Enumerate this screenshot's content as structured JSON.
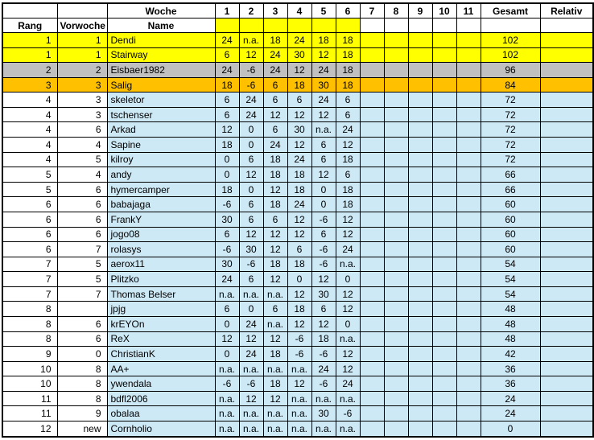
{
  "header": {
    "woche_label": "Woche",
    "rang_label": "Rang",
    "vorwoche_label": "Vorwoche",
    "name_label": "Name",
    "gesamt_label": "Gesamt",
    "relativ_label": "Relativ",
    "week_numbers": [
      "1",
      "2",
      "3",
      "4",
      "5",
      "6",
      "7",
      "8",
      "9",
      "10",
      "11"
    ],
    "completed_weeks": 6
  },
  "colors": {
    "rank1_highlight": "#FFFF00",
    "rank2_highlight": "#C0C0C0",
    "rank3_highlight": "#FFC000",
    "row_highlight": "#CDE9F6",
    "grid": "#000000"
  },
  "rows": [
    {
      "rang": "1",
      "vorwoche": "1",
      "name": "Dendi",
      "weeks": [
        "24",
        "n.a.",
        "18",
        "24",
        "18",
        "18"
      ],
      "gesamt": "102",
      "highlight": "gold"
    },
    {
      "rang": "1",
      "vorwoche": "1",
      "name": "Stairway",
      "weeks": [
        "6",
        "12",
        "24",
        "30",
        "12",
        "18"
      ],
      "gesamt": "102",
      "highlight": "gold"
    },
    {
      "rang": "2",
      "vorwoche": "2",
      "name": "Eisbaer1982",
      "weeks": [
        "24",
        "-6",
        "24",
        "12",
        "24",
        "18"
      ],
      "gesamt": "96",
      "highlight": "silver"
    },
    {
      "rang": "3",
      "vorwoche": "3",
      "name": "Salig",
      "weeks": [
        "18",
        "-6",
        "6",
        "18",
        "30",
        "18"
      ],
      "gesamt": "84",
      "highlight": "bronze"
    },
    {
      "rang": "4",
      "vorwoche": "3",
      "name": "skeletor",
      "weeks": [
        "6",
        "24",
        "6",
        "6",
        "24",
        "6"
      ],
      "gesamt": "72",
      "highlight": "blue"
    },
    {
      "rang": "4",
      "vorwoche": "3",
      "name": "tschenser",
      "weeks": [
        "6",
        "24",
        "12",
        "12",
        "12",
        "6"
      ],
      "gesamt": "72",
      "highlight": "blue"
    },
    {
      "rang": "4",
      "vorwoche": "6",
      "name": "Arkad",
      "weeks": [
        "12",
        "0",
        "6",
        "30",
        "n.a.",
        "24"
      ],
      "gesamt": "72",
      "highlight": "blue"
    },
    {
      "rang": "4",
      "vorwoche": "4",
      "name": "Sapine",
      "weeks": [
        "18",
        "0",
        "24",
        "12",
        "6",
        "12"
      ],
      "gesamt": "72",
      "highlight": "blue"
    },
    {
      "rang": "4",
      "vorwoche": "5",
      "name": "kilroy",
      "weeks": [
        "0",
        "6",
        "18",
        "24",
        "6",
        "18"
      ],
      "gesamt": "72",
      "highlight": "blue"
    },
    {
      "rang": "5",
      "vorwoche": "4",
      "name": "andy",
      "weeks": [
        "0",
        "12",
        "18",
        "18",
        "12",
        "6"
      ],
      "gesamt": "66",
      "highlight": "blue"
    },
    {
      "rang": "5",
      "vorwoche": "6",
      "name": "hymercamper",
      "weeks": [
        "18",
        "0",
        "12",
        "18",
        "0",
        "18"
      ],
      "gesamt": "66",
      "highlight": "blue"
    },
    {
      "rang": "6",
      "vorwoche": "6",
      "name": "babajaga",
      "weeks": [
        "-6",
        "6",
        "18",
        "24",
        "0",
        "18"
      ],
      "gesamt": "60",
      "highlight": "blue"
    },
    {
      "rang": "6",
      "vorwoche": "6",
      "name": "FrankY",
      "weeks": [
        "30",
        "6",
        "6",
        "12",
        "-6",
        "12"
      ],
      "gesamt": "60",
      "highlight": "blue"
    },
    {
      "rang": "6",
      "vorwoche": "6",
      "name": "jogo08",
      "weeks": [
        "6",
        "12",
        "12",
        "12",
        "6",
        "12"
      ],
      "gesamt": "60",
      "highlight": "blue"
    },
    {
      "rang": "6",
      "vorwoche": "7",
      "name": "rolasys",
      "weeks": [
        "-6",
        "30",
        "12",
        "6",
        "-6",
        "24"
      ],
      "gesamt": "60",
      "highlight": "blue"
    },
    {
      "rang": "7",
      "vorwoche": "5",
      "name": "aerox11",
      "weeks": [
        "30",
        "-6",
        "18",
        "18",
        "-6",
        "n.a."
      ],
      "gesamt": "54",
      "highlight": "blue"
    },
    {
      "rang": "7",
      "vorwoche": "5",
      "name": "Plitzko",
      "weeks": [
        "24",
        "6",
        "12",
        "0",
        "12",
        "0"
      ],
      "gesamt": "54",
      "highlight": "blue"
    },
    {
      "rang": "7",
      "vorwoche": "7",
      "name": "Thomas Belser",
      "weeks": [
        "n.a.",
        "n.a.",
        "n.a.",
        "12",
        "30",
        "12"
      ],
      "gesamt": "54",
      "highlight": "blue"
    },
    {
      "rang": "8",
      "vorwoche": "",
      "name": "jpjg",
      "weeks": [
        "6",
        "0",
        "6",
        "18",
        "6",
        "12"
      ],
      "gesamt": "48",
      "highlight": "blue"
    },
    {
      "rang": "8",
      "vorwoche": "6",
      "name": "krEYOn",
      "weeks": [
        "0",
        "24",
        "n.a.",
        "12",
        "12",
        "0"
      ],
      "gesamt": "48",
      "highlight": "blue"
    },
    {
      "rang": "8",
      "vorwoche": "6",
      "name": "ReX",
      "weeks": [
        "12",
        "12",
        "12",
        "-6",
        "18",
        "n.a."
      ],
      "gesamt": "48",
      "highlight": "blue"
    },
    {
      "rang": "9",
      "vorwoche": "0",
      "name": "ChristianK",
      "weeks": [
        "0",
        "24",
        "18",
        "-6",
        "-6",
        "12"
      ],
      "gesamt": "42",
      "highlight": "blue"
    },
    {
      "rang": "10",
      "vorwoche": "8",
      "name": "AA+",
      "weeks": [
        "n.a.",
        "n.a.",
        "n.a.",
        "n.a.",
        "24",
        "12"
      ],
      "gesamt": "36",
      "highlight": "blue"
    },
    {
      "rang": "10",
      "vorwoche": "8",
      "name": "ywendala",
      "weeks": [
        "-6",
        "-6",
        "18",
        "12",
        "-6",
        "24"
      ],
      "gesamt": "36",
      "highlight": "blue"
    },
    {
      "rang": "11",
      "vorwoche": "8",
      "name": "bdfl2006",
      "weeks": [
        "n.a.",
        "12",
        "12",
        "n.a.",
        "n.a.",
        "n.a."
      ],
      "gesamt": "24",
      "highlight": "blue"
    },
    {
      "rang": "11",
      "vorwoche": "9",
      "name": "obalaa",
      "weeks": [
        "n.a.",
        "n.a.",
        "n.a.",
        "n.a.",
        "30",
        "-6"
      ],
      "gesamt": "24",
      "highlight": "blue"
    },
    {
      "rang": "12",
      "vorwoche": "new",
      "name": "Cornholio",
      "weeks": [
        "n.a.",
        "n.a.",
        "n.a.",
        "n.a.",
        "n.a.",
        "n.a."
      ],
      "gesamt": "0",
      "highlight": "blue"
    }
  ]
}
